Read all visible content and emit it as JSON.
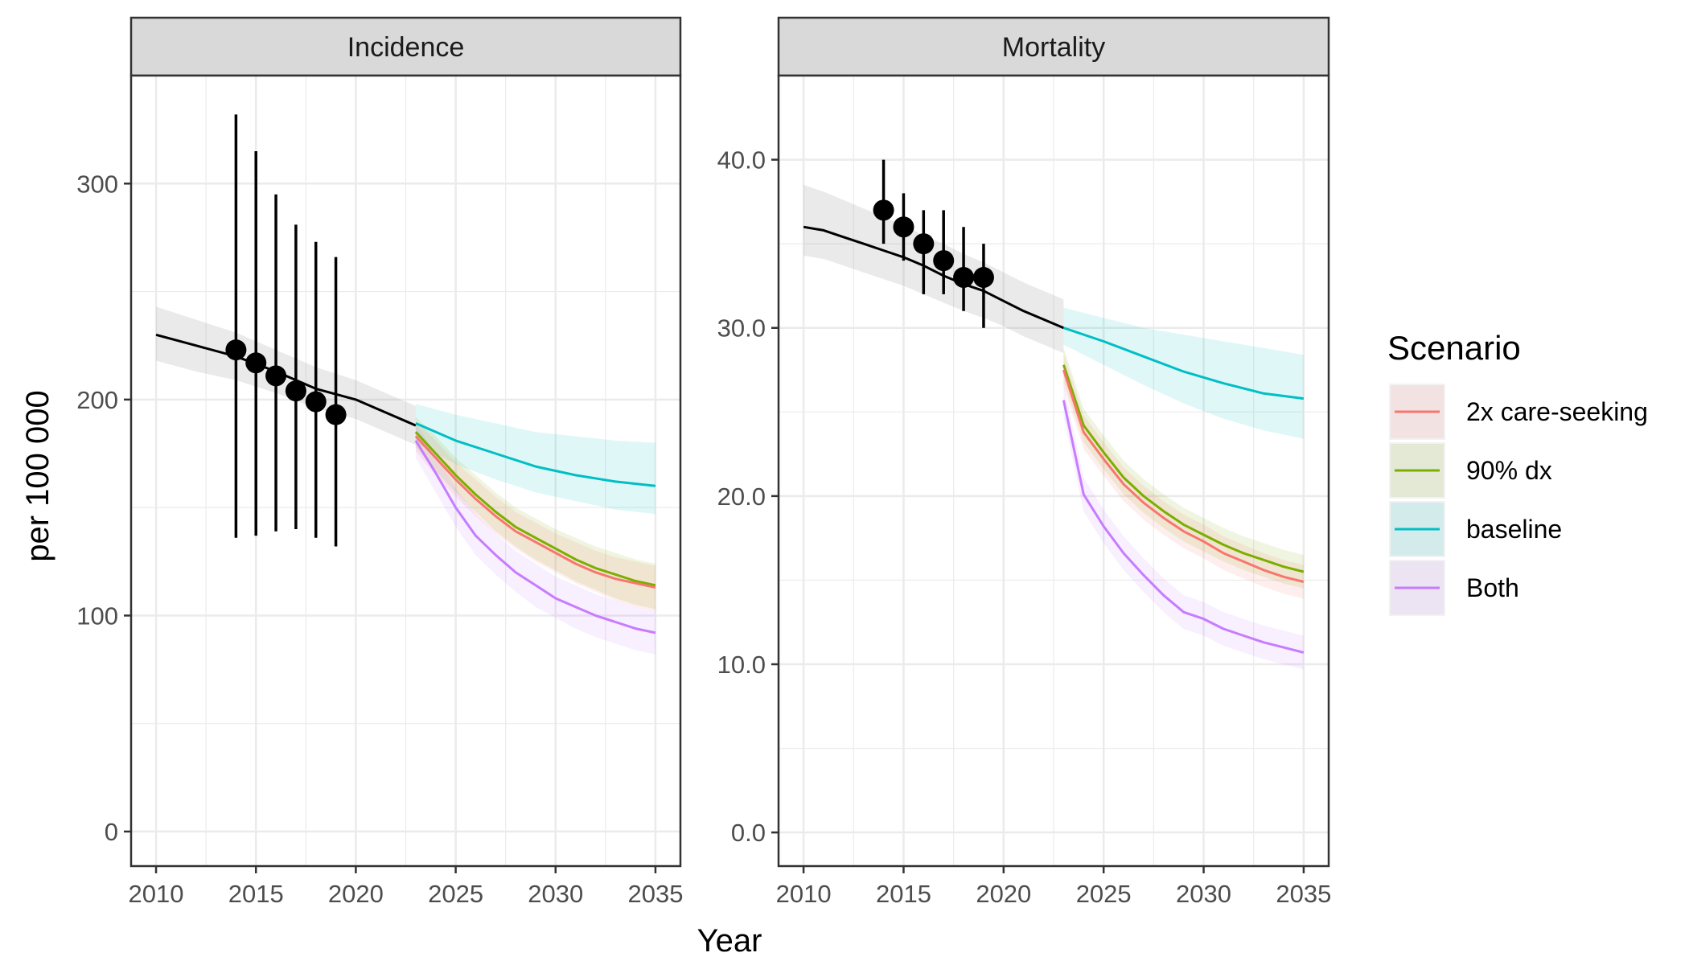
{
  "chart_data": {
    "type": "line",
    "xlabel": "Year",
    "ylabel": "per 100 000",
    "x_ticks": [
      2010,
      2015,
      2020,
      2025,
      2030,
      2035
    ],
    "legend": {
      "title": "Scenario",
      "position": "right",
      "items": [
        {
          "name": "2x care-seeking",
          "color": "#F8766D"
        },
        {
          "name": "90% dx",
          "color": "#7CAE00"
        },
        {
          "name": "baseline",
          "color": "#00BFC4"
        },
        {
          "name": "Both",
          "color": "#C77CFF"
        }
      ]
    },
    "panels": [
      {
        "title": "Incidence",
        "ylim": [
          -16,
          350
        ],
        "y_ticks": [
          0,
          100,
          200,
          300
        ],
        "y_tick_labels": [
          "0",
          "100",
          "200",
          "300"
        ],
        "history": {
          "x": [
            2010,
            2012,
            2014,
            2016,
            2018,
            2020,
            2021,
            2022,
            2023
          ],
          "y": [
            230,
            225,
            220,
            213,
            205,
            200,
            196,
            192,
            188
          ],
          "lo": [
            218,
            213,
            209,
            203,
            196,
            191,
            187,
            183,
            179
          ],
          "hi": [
            243,
            237,
            231,
            223,
            215,
            209,
            205,
            201,
            197
          ]
        },
        "observations": [
          {
            "x": 2014,
            "y": 223,
            "lo": 136,
            "hi": 332
          },
          {
            "x": 2015,
            "y": 217,
            "lo": 137,
            "hi": 315
          },
          {
            "x": 2016,
            "y": 211,
            "lo": 139,
            "hi": 295
          },
          {
            "x": 2017,
            "y": 204,
            "lo": 140,
            "hi": 281
          },
          {
            "x": 2018,
            "y": 199,
            "lo": 136,
            "hi": 273
          },
          {
            "x": 2019,
            "y": 193,
            "lo": 132,
            "hi": 266
          }
        ],
        "series": [
          {
            "name": "baseline",
            "x": [
              2023,
              2025,
              2027,
              2029,
              2031,
              2033,
              2035
            ],
            "y": [
              189,
              181,
              175,
              169,
              165,
              162,
              160
            ],
            "lo": [
              180,
              170,
              163,
              157,
              153,
              149,
              147
            ],
            "hi": [
              198,
              193,
              189,
              185,
              183,
              181,
              180
            ]
          },
          {
            "name": "90% dx",
            "x": [
              2023,
              2024,
              2025,
              2026,
              2027,
              2028,
              2029,
              2030,
              2031,
              2032,
              2033,
              2034,
              2035
            ],
            "y": [
              185,
              175,
              165,
              156,
              148,
              141,
              136,
              131,
              126,
              122,
              119,
              116,
              114
            ],
            "lo": [
              178,
              167,
              157,
              148,
              139,
              132,
              126,
              121,
              116,
              112,
              108,
              105,
              103
            ],
            "hi": [
              192,
              183,
              173,
              165,
              157,
              150,
              145,
              140,
              136,
              132,
              129,
              126,
              124
            ]
          },
          {
            "name": "2x care-seeking",
            "x": [
              2023,
              2024,
              2025,
              2026,
              2027,
              2028,
              2029,
              2030,
              2031,
              2032,
              2033,
              2034,
              2035
            ],
            "y": [
              183,
              173,
              163,
              154,
              146,
              139,
              134,
              129,
              124,
              120,
              117,
              115,
              113
            ],
            "lo": [
              176,
              165,
              155,
              146,
              138,
              131,
              125,
              120,
              115,
              111,
              107,
              104,
              102
            ],
            "hi": [
              190,
              181,
              171,
              163,
              155,
              148,
              143,
              138,
              134,
              130,
              127,
              125,
              123
            ]
          },
          {
            "name": "Both",
            "x": [
              2023,
              2024,
              2025,
              2026,
              2027,
              2028,
              2029,
              2030,
              2031,
              2032,
              2033,
              2034,
              2035
            ],
            "y": [
              181,
              166,
              150,
              137,
              128,
              120,
              114,
              108,
              104,
              100,
              97,
              94,
              92
            ],
            "lo": [
              173,
              157,
              141,
              128,
              119,
              111,
              104,
              99,
              94,
              90,
              87,
              84,
              82
            ],
            "hi": [
              189,
              175,
              159,
              147,
              138,
              130,
              124,
              118,
              114,
              110,
              107,
              104,
              102
            ]
          }
        ]
      },
      {
        "title": "Mortality",
        "ylim": [
          -2,
          45
        ],
        "y_ticks": [
          0,
          10,
          20,
          30,
          40
        ],
        "y_tick_labels": [
          "0.0",
          "10.0",
          "20.0",
          "30.0",
          "40.0"
        ],
        "history": {
          "x": [
            2010,
            2011,
            2012,
            2013,
            2014,
            2015,
            2016,
            2017,
            2018,
            2019,
            2020,
            2021,
            2022,
            2023
          ],
          "y": [
            36.0,
            35.8,
            35.4,
            35.0,
            34.6,
            34.2,
            33.7,
            33.1,
            32.6,
            32.2,
            31.6,
            31.0,
            30.5,
            30.0
          ],
          "lo": [
            34.3,
            34.1,
            33.7,
            33.3,
            32.9,
            32.5,
            32.0,
            31.5,
            31.0,
            30.6,
            30.1,
            29.5,
            29.0,
            28.5
          ],
          "hi": [
            38.5,
            38.1,
            37.6,
            37.1,
            36.6,
            36.1,
            35.5,
            35.0,
            34.4,
            33.9,
            33.3,
            32.7,
            32.2,
            31.7
          ]
        },
        "observations": [
          {
            "x": 2014,
            "y": 37,
            "lo": 35,
            "hi": 40
          },
          {
            "x": 2015,
            "y": 36,
            "lo": 34,
            "hi": 38
          },
          {
            "x": 2016,
            "y": 35,
            "lo": 32,
            "hi": 37
          },
          {
            "x": 2017,
            "y": 34,
            "lo": 32,
            "hi": 37
          },
          {
            "x": 2018,
            "y": 33,
            "lo": 31,
            "hi": 36
          },
          {
            "x": 2019,
            "y": 33,
            "lo": 30,
            "hi": 35
          }
        ],
        "series": [
          {
            "name": "baseline",
            "x": [
              2023,
              2025,
              2027,
              2029,
              2031,
              2033,
              2035
            ],
            "y": [
              30.0,
              29.2,
              28.3,
              27.4,
              26.7,
              26.1,
              25.8
            ],
            "lo": [
              29.0,
              27.8,
              26.6,
              25.5,
              24.6,
              23.9,
              23.4
            ],
            "hi": [
              31.2,
              30.6,
              30.0,
              29.6,
              29.2,
              28.8,
              28.4
            ]
          },
          {
            "name": "90% dx",
            "x": [
              2023,
              2024,
              2025,
              2026,
              2027,
              2028,
              2029,
              2030,
              2031,
              2032,
              2033,
              2034,
              2035
            ],
            "y": [
              27.8,
              24.2,
              22.6,
              21.1,
              20.0,
              19.1,
              18.3,
              17.7,
              17.1,
              16.6,
              16.2,
              15.8,
              15.5
            ],
            "lo": [
              26.8,
              23.2,
              21.6,
              20.1,
              19.0,
              18.1,
              17.3,
              16.7,
              16.1,
              15.6,
              15.2,
              14.8,
              14.5
            ],
            "hi": [
              28.8,
              25.2,
              23.6,
              22.1,
              21.0,
              20.1,
              19.3,
              18.7,
              18.1,
              17.6,
              17.2,
              16.8,
              16.5
            ]
          },
          {
            "name": "2x care-seeking",
            "x": [
              2023,
              2024,
              2025,
              2026,
              2027,
              2028,
              2029,
              2030,
              2031,
              2032,
              2033,
              2034,
              2035
            ],
            "y": [
              27.5,
              23.8,
              22.2,
              20.7,
              19.6,
              18.7,
              17.9,
              17.3,
              16.6,
              16.1,
              15.6,
              15.2,
              14.9
            ],
            "lo": [
              26.5,
              22.8,
              21.2,
              19.7,
              18.6,
              17.7,
              16.9,
              16.3,
              15.6,
              15.1,
              14.6,
              14.2,
              13.9
            ],
            "hi": [
              28.5,
              24.8,
              23.2,
              21.7,
              20.6,
              19.7,
              18.9,
              18.3,
              17.6,
              17.1,
              16.6,
              16.2,
              15.9
            ]
          },
          {
            "name": "Both",
            "x": [
              2023,
              2024,
              2025,
              2026,
              2027,
              2028,
              2029,
              2030,
              2031,
              2032,
              2033,
              2034,
              2035
            ],
            "y": [
              25.7,
              20.1,
              18.2,
              16.6,
              15.3,
              14.1,
              13.1,
              12.7,
              12.1,
              11.7,
              11.3,
              11.0,
              10.7
            ],
            "lo": [
              24.7,
              19.1,
              17.2,
              15.6,
              14.3,
              13.1,
              12.1,
              11.7,
              11.1,
              10.7,
              10.3,
              10.0,
              9.7
            ],
            "hi": [
              26.7,
              21.1,
              19.2,
              17.6,
              16.3,
              15.1,
              14.1,
              13.7,
              13.1,
              12.7,
              12.3,
              12.0,
              11.7
            ]
          }
        ]
      }
    ]
  }
}
